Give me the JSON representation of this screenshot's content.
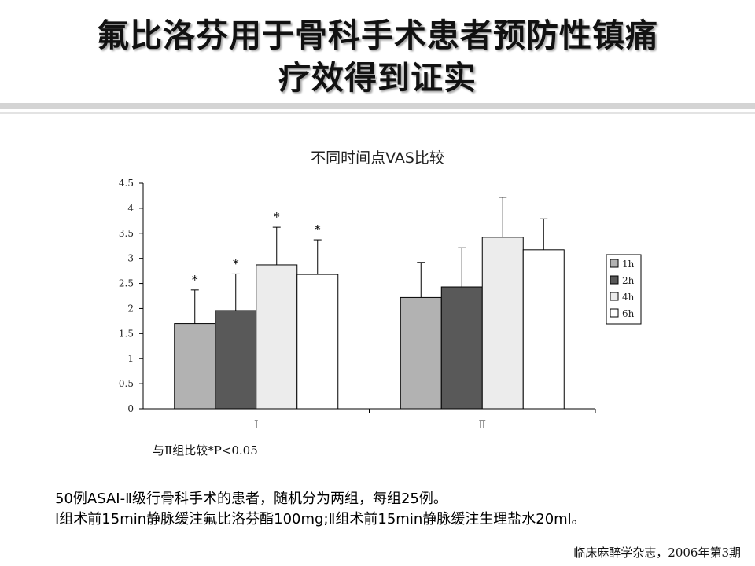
{
  "slide": {
    "title_line1": "氟比洛芬用于骨科手术患者预防性镇痛",
    "title_line2": "疗效得到证实",
    "footnote": "与Ⅱ组比较*P<0.05",
    "description_line1": "50例ASAⅠ-Ⅱ级行骨科手术的患者，随机分为两组，每组25例。",
    "description_line2": "Ⅰ组术前15min静脉缓注氟比洛芬酯100mg;Ⅱ组术前15min静脉缓注生理盐水20ml。",
    "source": "临床麻醉学杂志，2006年第3期"
  },
  "chart_data": {
    "type": "bar",
    "title": "不同时间点VAS比较",
    "xlabel": "",
    "ylabel": "",
    "categories": [
      "Ⅰ",
      "Ⅱ"
    ],
    "ylim": [
      0,
      4.5
    ],
    "yticks": [
      "0",
      "0.5",
      "1",
      "1.5",
      "2",
      "2.5",
      "3",
      "3.5",
      "4",
      "4.5"
    ],
    "grid": false,
    "legend_position": "right",
    "series": [
      {
        "name": "1h",
        "color": "#b2b2b2",
        "values": [
          1.7,
          2.22
        ],
        "error": [
          0.67,
          0.7
        ],
        "significance": [
          "*",
          ""
        ]
      },
      {
        "name": "2h",
        "color": "#595959",
        "values": [
          1.96,
          2.43
        ],
        "error": [
          0.73,
          0.78
        ],
        "significance": [
          "*",
          ""
        ]
      },
      {
        "name": "4h",
        "color": "#ececec",
        "values": [
          2.87,
          3.42
        ],
        "error": [
          0.75,
          0.8
        ],
        "significance": [
          "*",
          ""
        ]
      },
      {
        "name": "6h",
        "color": "#ffffff",
        "values": [
          2.68,
          3.17
        ],
        "error": [
          0.69,
          0.62
        ],
        "significance": [
          "*",
          ""
        ]
      }
    ]
  }
}
